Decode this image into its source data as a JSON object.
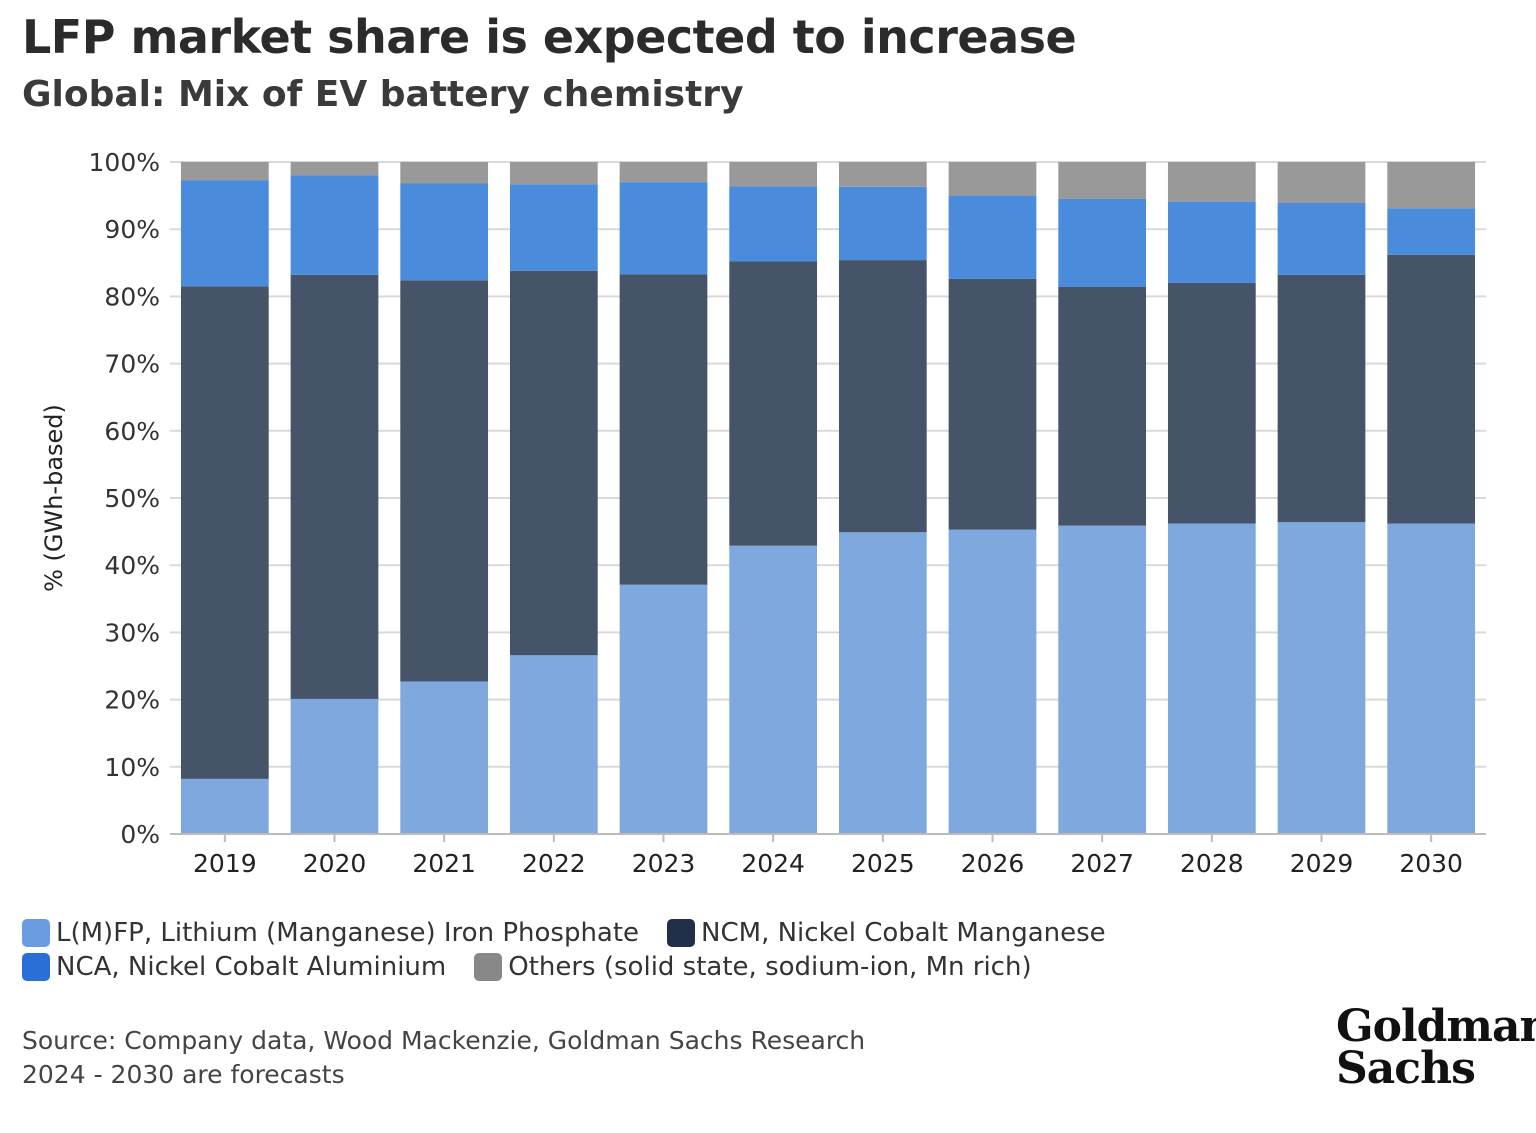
{
  "header": {
    "title": "LFP market share is expected to increase",
    "subtitle": "Global: Mix of EV battery chemistry"
  },
  "chart_data": {
    "type": "bar",
    "stacked": true,
    "categories": [
      "2019",
      "2020",
      "2021",
      "2022",
      "2023",
      "2024",
      "2025",
      "2026",
      "2027",
      "2028",
      "2029",
      "2030"
    ],
    "series": [
      {
        "name": "L(M)FP, Lithium (Manganese) Iron Phosphate",
        "color": "#7fa8df",
        "values": [
          8.2,
          20.1,
          22.7,
          26.6,
          37.1,
          42.9,
          44.9,
          45.3,
          45.9,
          46.2,
          46.4,
          46.2
        ]
      },
      {
        "name": "NCM, Nickel Cobalt Manganese",
        "color": "#455468",
        "values": [
          73.3,
          63.1,
          59.7,
          57.2,
          46.2,
          42.3,
          40.5,
          37.3,
          35.5,
          35.8,
          36.8,
          40.0
        ]
      },
      {
        "name": "NCA, Nickel Cobalt Aluminium",
        "color": "#4a8bdb",
        "values": [
          15.8,
          14.8,
          14.4,
          12.9,
          13.7,
          11.2,
          10.9,
          12.4,
          13.1,
          12.1,
          10.7,
          6.9
        ]
      },
      {
        "name": "Others (solid state, sodium-ion, Mn rich)",
        "color": "#999999",
        "values": [
          2.7,
          2.0,
          3.2,
          3.3,
          3.0,
          3.6,
          3.7,
          5.0,
          5.5,
          5.9,
          6.1,
          6.9
        ]
      }
    ],
    "ylabel": "% (GWh-based)",
    "ylim": [
      0,
      100
    ],
    "yticks": [
      "0%",
      "10%",
      "20%",
      "30%",
      "40%",
      "50%",
      "60%",
      "70%",
      "80%",
      "90%",
      "100%"
    ],
    "grid": true,
    "legend_placement": "bottom"
  },
  "legend": {
    "items": [
      {
        "label": "L(M)FP, Lithium (Manganese) Iron Phosphate",
        "color": "#6b9be0"
      },
      {
        "label": "NCM, Nickel Cobalt Manganese",
        "color": "#1f2f47"
      },
      {
        "label": "NCA, Nickel Cobalt Aluminium",
        "color": "#2a6fd6"
      },
      {
        "label": "Others (solid state, sodium-ion, Mn rich)",
        "color": "#888888"
      }
    ]
  },
  "footer": {
    "source": "Source: Company data, Wood Mackenzie, Goldman Sachs Research",
    "note": "2024 - 2030 are forecasts",
    "logo_line1": "Goldman",
    "logo_line2": "Sachs"
  }
}
